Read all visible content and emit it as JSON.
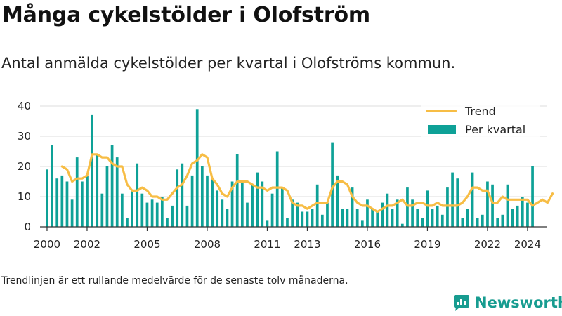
{
  "header": {
    "title": "Många cykelstölder i Olofström",
    "subtitle": "Antal anmälda cykelstölder per kvartal i Olofströms kommun."
  },
  "footer": {
    "note": "Trendlinjen är ett rullande medelvärde för de senaste tolv månaderna.",
    "brand": "Newsworthy"
  },
  "colors": {
    "bar": "#0ea197",
    "trend": "#f7bd45",
    "grid": "#dddddd",
    "axis": "#333333",
    "brand": "#179c90"
  },
  "chart_data": {
    "type": "bar",
    "title": "",
    "xlabel": "",
    "ylabel": "",
    "ylim": [
      0,
      40
    ],
    "yticks": [
      0,
      10,
      20,
      30,
      40
    ],
    "x_start": 2000.0,
    "x_step": 0.25,
    "xlim": [
      1999.65,
      2024.95
    ],
    "xtick_labels": [
      "2000",
      "2002",
      "2005",
      "2008",
      "2011",
      "2013",
      "2016",
      "2019",
      "2022",
      "2024"
    ],
    "xtick_positions": [
      2000,
      2002,
      2005,
      2008,
      2011,
      2013,
      2016,
      2019,
      2022,
      2024
    ],
    "legend_position": "top-right",
    "grid": true,
    "series": [
      {
        "name": "Trend",
        "kind": "line",
        "start": 2000.75,
        "values": [
          20,
          19,
          15,
          16,
          16,
          17,
          24,
          24,
          23,
          23,
          21,
          20,
          20,
          14,
          12,
          12,
          13,
          12,
          10,
          10,
          9,
          9,
          11,
          13,
          14,
          17,
          21,
          22,
          24,
          23,
          16,
          14,
          11,
          10,
          13,
          15,
          15,
          15,
          14,
          13,
          13,
          12,
          13,
          13,
          13,
          12,
          8,
          7,
          7,
          6,
          7,
          8,
          8,
          8,
          13,
          15,
          15,
          14,
          10,
          8,
          7,
          7,
          6,
          5,
          6,
          7,
          7,
          8,
          9,
          7,
          7,
          8,
          8,
          7,
          7,
          8,
          7,
          7,
          7,
          7,
          8,
          10,
          13,
          13,
          12,
          12,
          8,
          8,
          10,
          9,
          9,
          9,
          9,
          9,
          7,
          8,
          9,
          8,
          11
        ]
      },
      {
        "name": "Per kvartal",
        "kind": "bar",
        "start": 2000.0,
        "values": [
          19,
          27,
          16,
          17,
          15,
          9,
          23,
          15,
          17,
          37,
          24,
          11,
          20,
          27,
          23,
          11,
          3,
          12,
          21,
          11,
          8,
          9,
          8,
          10,
          3,
          7,
          19,
          21,
          7,
          17,
          39,
          20,
          17,
          16,
          12,
          9,
          6,
          15,
          24,
          15,
          8,
          14,
          18,
          15,
          2,
          11,
          25,
          13,
          3,
          9,
          8,
          5,
          5,
          6,
          14,
          4,
          8,
          28,
          17,
          6,
          6,
          13,
          6,
          2,
          9,
          6,
          5,
          8,
          11,
          6,
          9,
          1,
          13,
          9,
          6,
          3,
          12,
          6,
          7,
          4,
          13,
          18,
          16,
          3,
          6,
          18,
          3,
          4,
          15,
          14,
          3,
          4,
          14,
          6,
          7,
          10,
          8,
          20
        ]
      }
    ]
  }
}
